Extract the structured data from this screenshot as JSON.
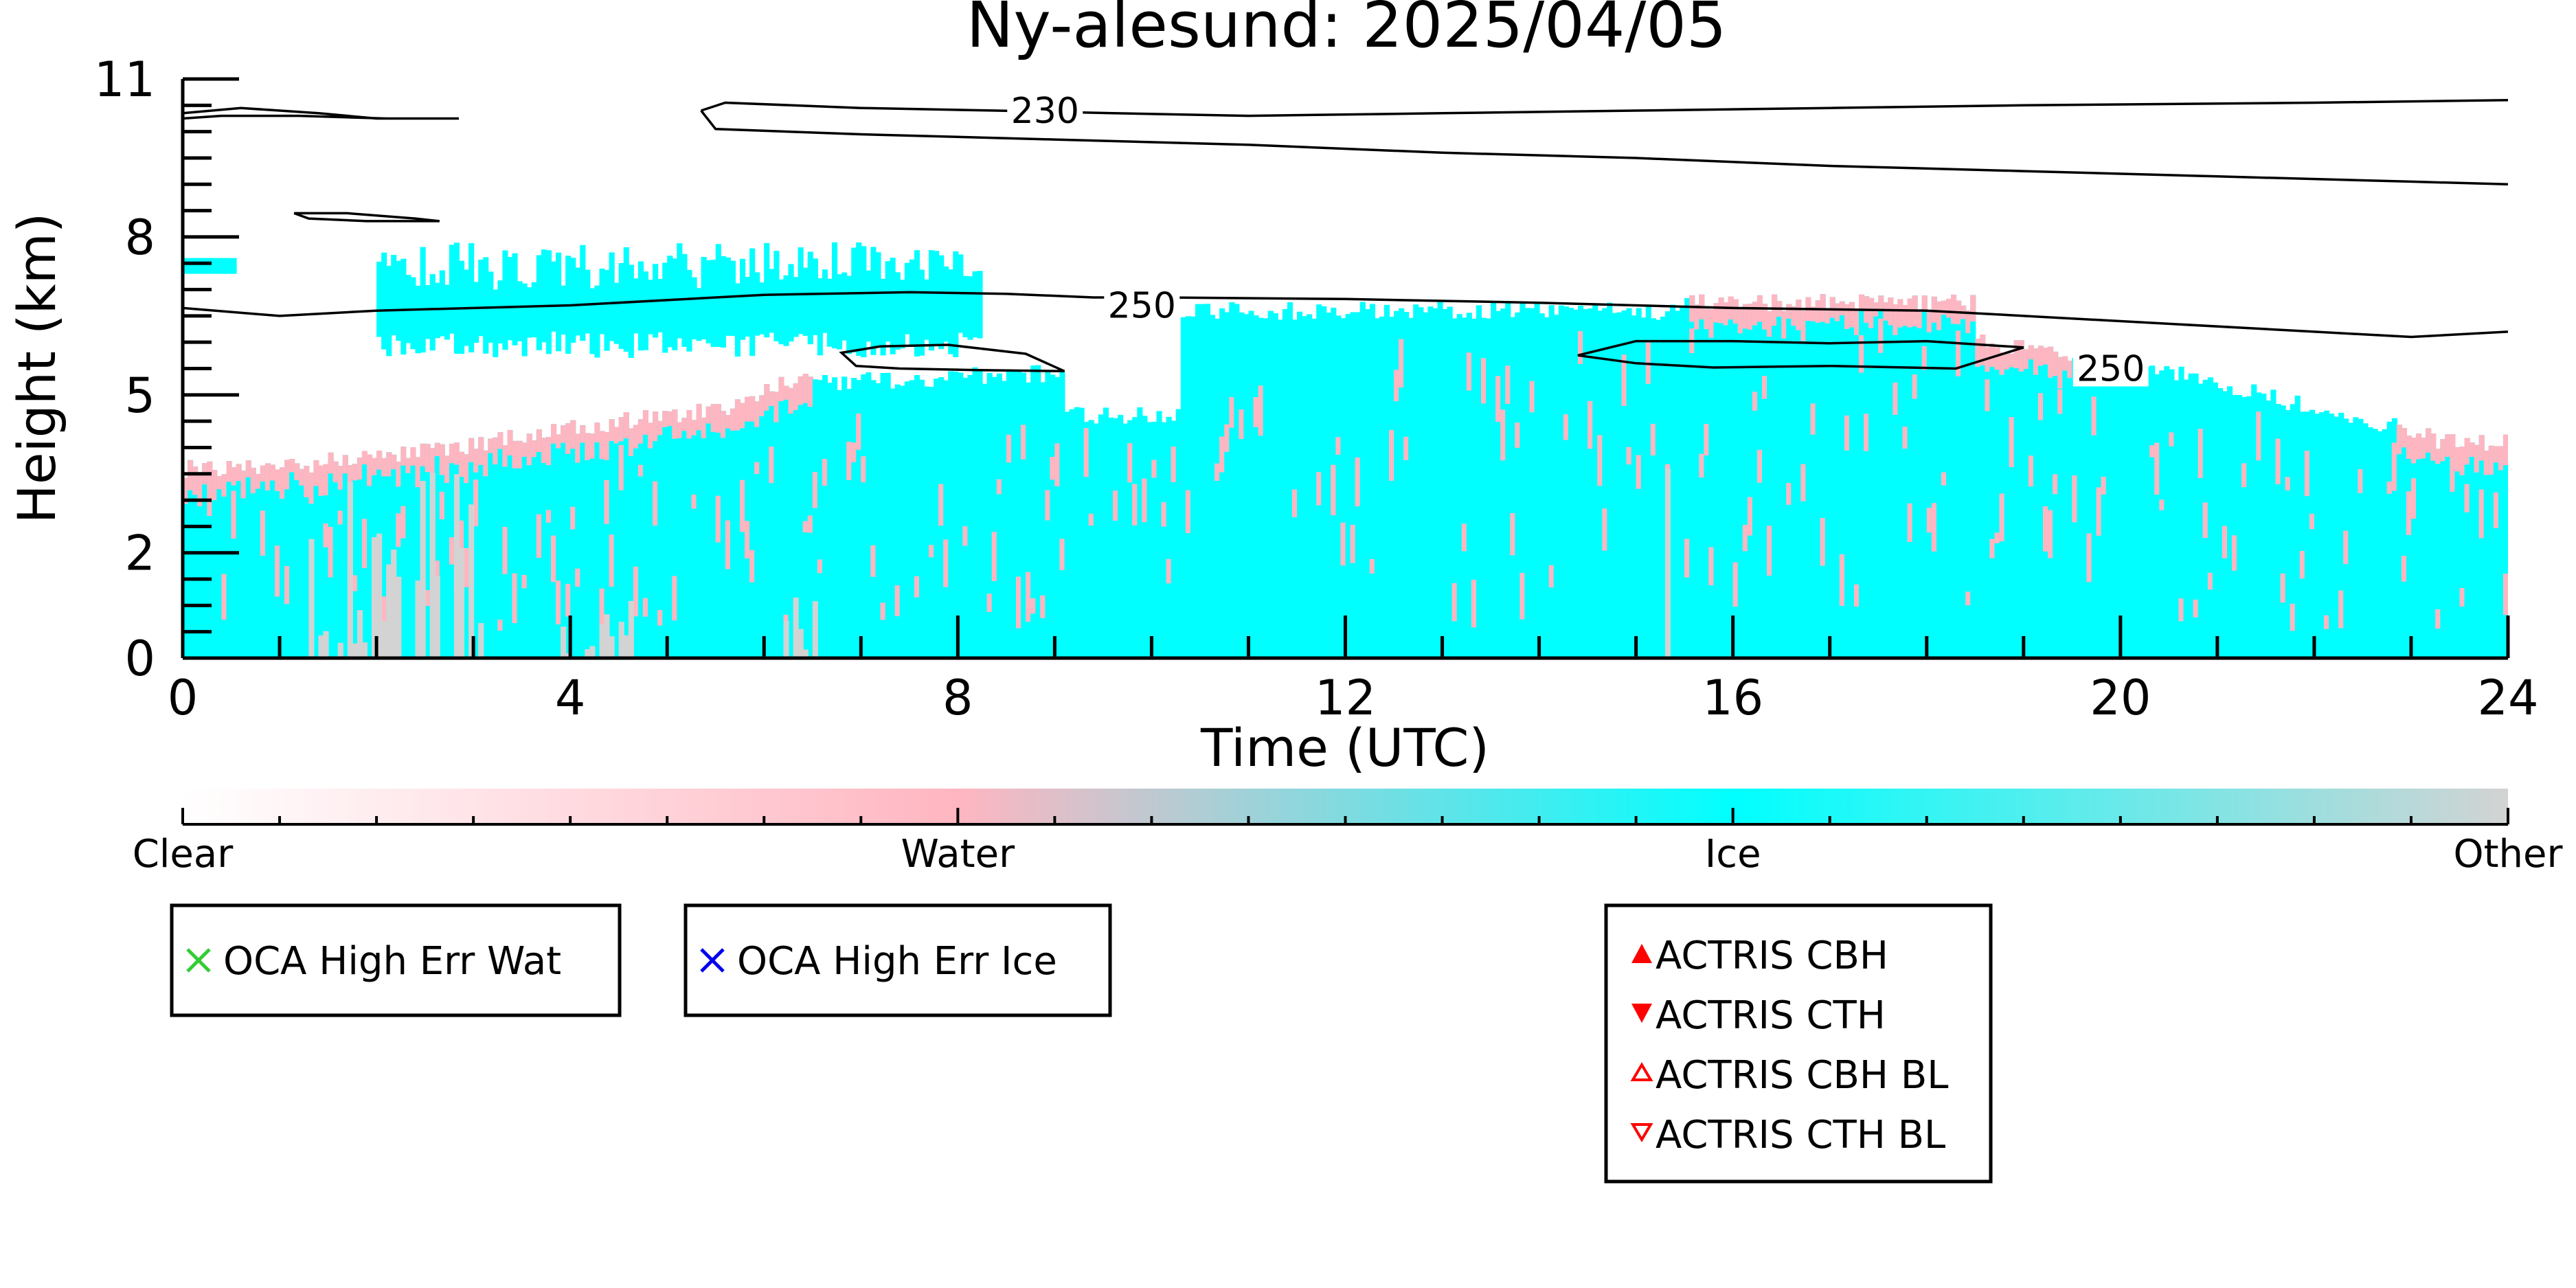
{
  "chart_data": {
    "type": "heatmap",
    "title": "Ny-alesund: 2025/04/05",
    "xlabel": "Time (UTC)",
    "ylabel": "Height (km)",
    "xlim": [
      0,
      24
    ],
    "ylim": [
      0,
      11
    ],
    "x_ticks": [
      0,
      4,
      8,
      12,
      16,
      20,
      24
    ],
    "y_ticks": [
      0,
      2,
      5,
      8,
      11
    ],
    "colors": {
      "clear": "#ffffff",
      "water": "#ffb6c1",
      "ice": "#00ffff",
      "other": "#d3d3d3",
      "contour": "#000000",
      "oca_wat": "#33cc33",
      "oca_ice": "#0000ee",
      "actris": "#ff0000"
    },
    "colorbar": {
      "categories": [
        "Clear",
        "Water",
        "Ice",
        "Other"
      ],
      "range": [
        0,
        3
      ]
    },
    "contour_labels": [
      {
        "text": "230",
        "x": 8.9,
        "y": 10.4
      },
      {
        "text": "250",
        "x": 9.9,
        "y": 6.7
      },
      {
        "text": "250",
        "x": 19.9,
        "y": 5.5
      }
    ],
    "contours": [
      {
        "level": 230,
        "points": [
          [
            5.35,
            10.4
          ],
          [
            5.6,
            10.55
          ],
          [
            7,
            10.45
          ],
          [
            8.4,
            10.4
          ],
          [
            9.6,
            10.35
          ],
          [
            11,
            10.3
          ],
          [
            13,
            10.35
          ],
          [
            15,
            10.4
          ],
          [
            17,
            10.45
          ],
          [
            19,
            10.5
          ],
          [
            22,
            10.55
          ],
          [
            24,
            10.6
          ]
        ]
      },
      {
        "level": 230,
        "points": [
          [
            5.35,
            10.4
          ],
          [
            5.5,
            10.05
          ],
          [
            7,
            9.95
          ],
          [
            9,
            9.85
          ],
          [
            11,
            9.75
          ],
          [
            13,
            9.6
          ],
          [
            15,
            9.5
          ],
          [
            17,
            9.35
          ],
          [
            19,
            9.25
          ],
          [
            21,
            9.15
          ],
          [
            23,
            9.05
          ],
          [
            24,
            9.0
          ]
        ]
      },
      {
        "level": 230,
        "closed": true,
        "points": [
          [
            0,
            10.35
          ],
          [
            0.6,
            10.45
          ],
          [
            1.4,
            10.35
          ],
          [
            2.0,
            10.25
          ],
          [
            2.85,
            10.25
          ],
          [
            2.1,
            10.25
          ],
          [
            1.2,
            10.3
          ],
          [
            0.4,
            10.3
          ],
          [
            0,
            10.25
          ]
        ]
      },
      {
        "level": 230,
        "closed": true,
        "points": [
          [
            1.15,
            8.45
          ],
          [
            1.7,
            8.45
          ],
          [
            2.4,
            8.35
          ],
          [
            2.65,
            8.3
          ],
          [
            1.9,
            8.3
          ],
          [
            1.3,
            8.35
          ]
        ]
      },
      {
        "level": 250,
        "points": [
          [
            0,
            6.65
          ],
          [
            1,
            6.5
          ],
          [
            2,
            6.6
          ],
          [
            4,
            6.7
          ],
          [
            6,
            6.9
          ],
          [
            7.5,
            6.95
          ],
          [
            8.5,
            6.92
          ],
          [
            9.4,
            6.85
          ],
          [
            10.1,
            6.85
          ],
          [
            12,
            6.82
          ],
          [
            14,
            6.75
          ],
          [
            16,
            6.65
          ],
          [
            18,
            6.6
          ],
          [
            20,
            6.4
          ],
          [
            22,
            6.2
          ],
          [
            23,
            6.1
          ],
          [
            24,
            6.2
          ]
        ]
      },
      {
        "level": 250,
        "closed": true,
        "points": [
          [
            6.8,
            5.8
          ],
          [
            7.2,
            5.92
          ],
          [
            7.9,
            5.95
          ],
          [
            8.7,
            5.78
          ],
          [
            9.1,
            5.45
          ],
          [
            8.2,
            5.47
          ],
          [
            7.4,
            5.5
          ],
          [
            6.95,
            5.55
          ]
        ]
      },
      {
        "level": 250,
        "closed": true,
        "points": [
          [
            14.4,
            5.75
          ],
          [
            15,
            6.02
          ],
          [
            16,
            6.02
          ],
          [
            17,
            5.98
          ],
          [
            18,
            6.02
          ],
          [
            19,
            5.9
          ],
          [
            18.3,
            5.5
          ],
          [
            17,
            5.55
          ],
          [
            15.8,
            5.52
          ],
          [
            15,
            5.6
          ]
        ]
      }
    ],
    "legends": [
      {
        "entries": [
          {
            "marker": "x",
            "label": "OCA High Err Wat"
          }
        ]
      },
      {
        "entries": [
          {
            "marker": "x",
            "label": "OCA High Err Ice"
          }
        ]
      },
      {
        "entries": [
          {
            "marker": "triangle-up",
            "label": "ACTRIS CBH"
          },
          {
            "marker": "triangle-down",
            "label": "ACTRIS CTH"
          },
          {
            "marker": "triangle-up-open",
            "label": "ACTRIS CBH BL"
          },
          {
            "marker": "triangle-down-open",
            "label": "ACTRIS CTH BL"
          }
        ]
      }
    ]
  }
}
